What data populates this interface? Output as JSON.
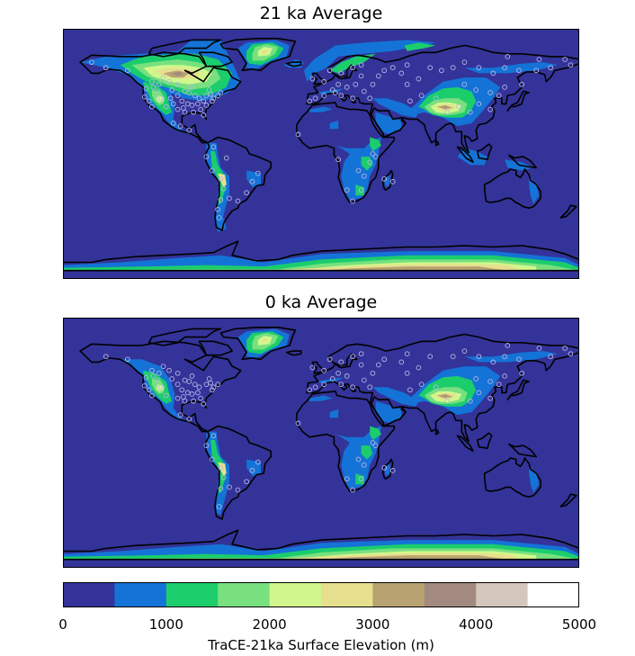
{
  "panels": [
    {
      "title": "21 ka Average",
      "period": "21 ka"
    },
    {
      "title": "0 ka Average",
      "period": "0 ka"
    }
  ],
  "colorbar": {
    "label": "TraCE-21ka Surface Elevation (m)",
    "range": [
      0,
      5000
    ],
    "step": 500,
    "tick_labels": [
      "0",
      "1000",
      "2000",
      "3000",
      "4000",
      "5000"
    ],
    "tick_values": [
      0,
      1000,
      2000,
      3000,
      4000,
      5000
    ],
    "colors": [
      "#333399",
      "#1473d6",
      "#1ccd6c",
      "#78e07f",
      "#d1f78c",
      "#e6e08e",
      "#b8a272",
      "#a38a80",
      "#d4c6bd",
      "#ffffff"
    ]
  },
  "map": {
    "projection": "equirectangular",
    "ocean_color": "#333399",
    "coastline_color": "#000000",
    "marker_color": "#b8b5e6"
  }
}
